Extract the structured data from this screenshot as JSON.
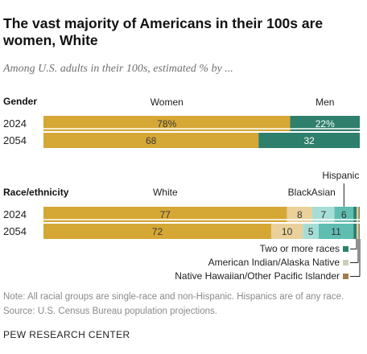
{
  "header": {
    "title": "The vast majority of Americans in their 100s are women, White",
    "subtitle": "Among U.S. adults in their 100s, estimated % by ..."
  },
  "chart_data": [
    {
      "type": "bar",
      "orientation": "horizontal",
      "stacked": true,
      "section_label": "Gender",
      "categories": [
        "2024",
        "2054"
      ],
      "series": [
        {
          "name": "Women",
          "values": [
            78,
            68
          ],
          "labels": [
            "78%",
            "68"
          ],
          "color": "#d5a735"
        },
        {
          "name": "Men",
          "values": [
            22,
            32
          ],
          "labels": [
            "22%",
            "32"
          ],
          "color": "#2e7f6b"
        }
      ]
    },
    {
      "type": "bar",
      "orientation": "horizontal",
      "stacked": true,
      "section_label": "Race/ethnicity",
      "categories": [
        "2024",
        "2054"
      ],
      "series": [
        {
          "name": "White",
          "values": [
            77,
            72
          ],
          "labels": [
            "77",
            "72"
          ],
          "color": "#d5a735"
        },
        {
          "name": "Black",
          "values": [
            8,
            10
          ],
          "labels": [
            "8",
            "10"
          ],
          "color": "#ead19b"
        },
        {
          "name": "Asian",
          "values": [
            7,
            5
          ],
          "labels": [
            "7",
            "5"
          ],
          "color": "#a7ddd7"
        },
        {
          "name": "Hispanic",
          "values": [
            6,
            11
          ],
          "labels": [
            "6",
            "11"
          ],
          "color": "#5fbdb1"
        },
        {
          "name": "Two or more races",
          "values": [
            1,
            1
          ],
          "labels": [
            "",
            ""
          ],
          "color": "#2e7f6b"
        },
        {
          "name": "American Indian/Alaska Native",
          "values": [
            0.6,
            0.6
          ],
          "labels": [
            "",
            ""
          ],
          "color": "#cfcfb8"
        },
        {
          "name": "Native Hawaiian/Other Pacific Islander",
          "values": [
            0.4,
            0.4
          ],
          "labels": [
            "",
            ""
          ],
          "color": "#9c7f4c"
        }
      ]
    }
  ],
  "footer": {
    "note": "Note: All racial groups are single-race and non-Hispanic. Hispanics are of any race.",
    "source": "Source: U.S. Census Bureau population projections.",
    "brand": "PEW RESEARCH CENTER"
  },
  "colors": {
    "gold": "#d5a735",
    "dark_teal": "#2e7f6b",
    "light_gold": "#ead19b",
    "light_teal": "#a7ddd7",
    "mid_teal": "#5fbdb1"
  }
}
